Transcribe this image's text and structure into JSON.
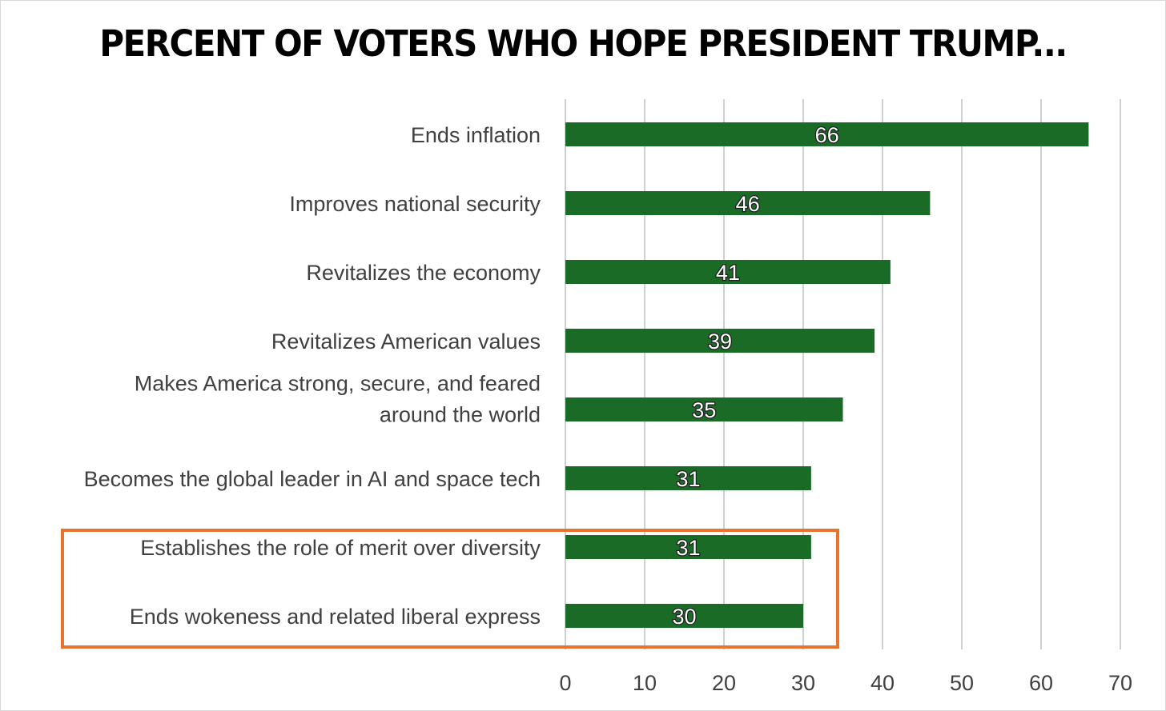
{
  "chart_data": {
    "type": "bar",
    "orientation": "horizontal",
    "title": "PERCENT OF VOTERS WHO HOPE PRESIDENT TRUMP...",
    "categories": [
      [
        "Ends inflation"
      ],
      [
        "Improves national security"
      ],
      [
        "Revitalizes the economy"
      ],
      [
        "Revitalizes American values"
      ],
      [
        "Makes America strong, secure, and feared",
        "around the world"
      ],
      [
        "Becomes the global leader in AI and space tech"
      ],
      [
        "Establishes the role of merit over diversity"
      ],
      [
        "Ends wokeness and related liberal express"
      ]
    ],
    "values": [
      66,
      46,
      41,
      39,
      35,
      31,
      31,
      30
    ],
    "data_labels": [
      "66",
      "46",
      "41",
      "39",
      "35",
      "31",
      "31",
      "30"
    ],
    "xlim": [
      0,
      70
    ],
    "x_ticks": [
      "0",
      "10",
      "20",
      "30",
      "40",
      "50",
      "60",
      "70"
    ],
    "grid": true,
    "legend": "none",
    "highlight": {
      "categories": [
        6,
        7
      ],
      "style": "box"
    },
    "colors": {
      "bar": "#1a6b26",
      "highlight_box": "#e8732e",
      "grid": "#d0d0d0"
    }
  }
}
